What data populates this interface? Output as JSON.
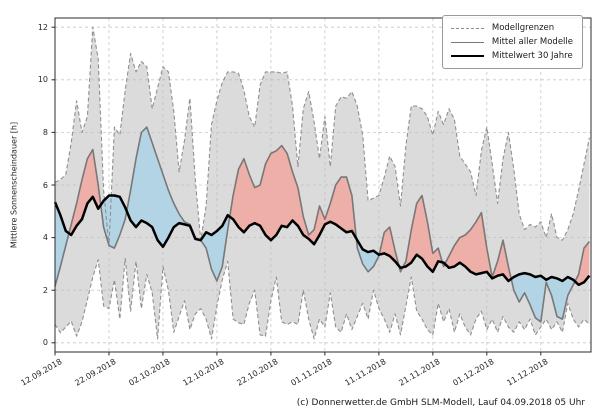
{
  "chart": {
    "ylabel": "Mittlere Sonnenscheindauer [h]",
    "footer": "(c) Donnerwetter.de GmbH SLM-Modell, Lauf 04.09.2018 05 Uhr",
    "legend": [
      {
        "label": "Modellgrenzen",
        "style": "dashed-gray"
      },
      {
        "label": "Mittel aller Modelle",
        "style": "solid-gray"
      },
      {
        "label": "Mittelwert 30 Jahre",
        "style": "solid-black"
      }
    ]
  },
  "chart_data": {
    "type": "line",
    "title": "",
    "ylabel": "Mittlere Sonnenscheindauer [h]",
    "x_unit": "days since 12.09.2018 (daily values)",
    "x_ticks": [
      {
        "day": 0,
        "label": "12.09.2018"
      },
      {
        "day": 10,
        "label": "22.09.2018"
      },
      {
        "day": 20,
        "label": "02.10.2018"
      },
      {
        "day": 30,
        "label": "12.10.2018"
      },
      {
        "day": 40,
        "label": "22.10.2018"
      },
      {
        "day": 50,
        "label": "01.11.2018"
      },
      {
        "day": 60,
        "label": "11.11.2018"
      },
      {
        "day": 70,
        "label": "21.11.2018"
      },
      {
        "day": 80,
        "label": "01.12.2018"
      },
      {
        "day": 90,
        "label": "11.12.2018"
      }
    ],
    "yticks": [
      0,
      2,
      4,
      6,
      8,
      10,
      12
    ],
    "ylim": [
      -0.35,
      12.35
    ],
    "xlim_days": [
      0,
      99.3
    ],
    "grid": true,
    "legend_position": "upper right",
    "colors": {
      "band_fill": "#dbdbdb",
      "bound_line": "#8f8f8f",
      "model_mean_line": "#787878",
      "mean30_line": "#000000",
      "above_fill": "#edafa7",
      "below_fill": "#b3d4e5",
      "grid": "#bdbdbd",
      "spine": "#2b2b2b"
    },
    "series": [
      {
        "name": "Modellgrenzen (oberes Limit)",
        "values": [
          6.1,
          6.2,
          6.4,
          7.6,
          9.2,
          8.0,
          8.6,
          12.0,
          10.8,
          5.8,
          3.7,
          8.2,
          7.9,
          9.6,
          11.0,
          10.3,
          10.7,
          10.5,
          8.9,
          9.7,
          10.5,
          10.3,
          8.8,
          6.5,
          7.7,
          9.3,
          6.2,
          3.9,
          5.2,
          8.3,
          9.2,
          9.9,
          10.3,
          10.3,
          10.25,
          9.6,
          8.6,
          8.2,
          9.8,
          10.3,
          10.3,
          10.3,
          10.25,
          10.3,
          9.0,
          6.7,
          8.9,
          9.55,
          8.4,
          7.0,
          8.6,
          6.7,
          9.0,
          9.35,
          9.3,
          9.55,
          9.0,
          7.9,
          5.4,
          5.5,
          5.6,
          6.3,
          7.1,
          6.7,
          5.2,
          7.5,
          9.0,
          9.0,
          8.9,
          8.6,
          7.9,
          8.8,
          8.3,
          8.9,
          8.5,
          7.1,
          6.8,
          6.5,
          5.6,
          7.3,
          8.2,
          6.8,
          5.3,
          7.0,
          8.0,
          6.6,
          4.9,
          4.3,
          4.5,
          4.4,
          4.6,
          4.0,
          4.9,
          4.0,
          3.9,
          4.3,
          4.9,
          5.8,
          6.8,
          7.8
        ]
      },
      {
        "name": "Modellgrenzen (unteres Limit)",
        "values": [
          0.7,
          0.38,
          0.6,
          0.82,
          0.25,
          0.8,
          1.64,
          2.5,
          3.16,
          1.4,
          1.3,
          2.4,
          0.9,
          3.2,
          1.2,
          3.1,
          1.3,
          2.6,
          1.9,
          0.15,
          2.9,
          2.0,
          0.4,
          1.0,
          1.6,
          0.5,
          1.1,
          1.3,
          0.9,
          0.15,
          1.4,
          2.4,
          3.1,
          0.9,
          0.76,
          0.7,
          1.5,
          2.0,
          0.3,
          0.25,
          1.6,
          2.5,
          0.8,
          0.7,
          0.8,
          0.7,
          2.0,
          0.9,
          0.15,
          0.9,
          0.6,
          1.9,
          0.6,
          0.4,
          1.1,
          0.5,
          1.0,
          1.5,
          0.9,
          2.0,
          1.3,
          0.9,
          0.4,
          1.1,
          0.3,
          1.4,
          2.5,
          1.2,
          0.9,
          0.5,
          0.3,
          1.5,
          0.8,
          1.3,
          0.4,
          1.1,
          0.6,
          0.3,
          0.9,
          1.2,
          0.5,
          0.9,
          0.4,
          1.0,
          0.6,
          0.4,
          0.8,
          0.5,
          0.9,
          0.3,
          0.6,
          0.9,
          0.5,
          0.8,
          0.4,
          1.5,
          0.9,
          0.6,
          0.9,
          0.7
        ]
      },
      {
        "name": "Mittel aller Modelle",
        "values": [
          2.15,
          2.9,
          3.7,
          4.5,
          5.3,
          6.2,
          7.0,
          7.35,
          6.0,
          4.4,
          3.7,
          3.6,
          4.1,
          4.7,
          5.8,
          7.0,
          8.0,
          8.2,
          7.6,
          7.0,
          6.4,
          5.8,
          5.3,
          4.9,
          4.6,
          4.5,
          4.0,
          3.9,
          3.6,
          2.8,
          2.35,
          2.9,
          4.3,
          5.6,
          6.6,
          7.0,
          6.4,
          5.9,
          6.0,
          6.8,
          7.2,
          7.3,
          7.5,
          7.2,
          6.5,
          5.9,
          4.8,
          4.1,
          4.3,
          5.2,
          4.7,
          5.3,
          6.0,
          6.3,
          6.3,
          5.6,
          3.6,
          3.0,
          2.7,
          2.9,
          3.3,
          4.2,
          4.4,
          3.5,
          2.7,
          3.1,
          4.3,
          5.3,
          5.6,
          4.6,
          3.4,
          3.6,
          2.9,
          3.3,
          3.7,
          4.0,
          4.1,
          4.3,
          4.6,
          4.95,
          3.6,
          2.5,
          3.1,
          3.9,
          2.9,
          2.0,
          1.55,
          1.9,
          1.45,
          0.95,
          0.8,
          2.3,
          1.8,
          1.0,
          0.9,
          1.8,
          2.2,
          2.6,
          3.6,
          3.85
        ]
      },
      {
        "name": "Mittelwert 30 Jahre",
        "values": [
          5.35,
          4.85,
          4.25,
          4.1,
          4.45,
          4.7,
          5.3,
          5.55,
          5.1,
          5.4,
          5.6,
          5.6,
          5.55,
          5.15,
          4.65,
          4.4,
          4.65,
          4.55,
          4.4,
          3.9,
          3.65,
          4.0,
          4.4,
          4.55,
          4.5,
          4.45,
          3.95,
          3.9,
          4.2,
          4.1,
          4.25,
          4.45,
          4.85,
          4.7,
          4.4,
          4.2,
          4.45,
          4.55,
          4.45,
          4.1,
          3.9,
          4.1,
          4.45,
          4.4,
          4.65,
          4.45,
          4.1,
          3.95,
          3.75,
          4.1,
          4.5,
          4.6,
          4.5,
          4.35,
          4.2,
          4.25,
          3.9,
          3.55,
          3.45,
          3.5,
          3.35,
          3.4,
          3.3,
          3.1,
          2.85,
          2.9,
          3.05,
          3.35,
          3.2,
          2.9,
          2.7,
          3.1,
          3.05,
          2.85,
          2.9,
          3.05,
          2.9,
          2.7,
          2.6,
          2.65,
          2.7,
          2.45,
          2.55,
          2.6,
          2.35,
          2.5,
          2.6,
          2.65,
          2.6,
          2.5,
          2.55,
          2.4,
          2.5,
          2.45,
          2.35,
          2.5,
          2.4,
          2.2,
          2.3,
          2.55
        ]
      }
    ]
  }
}
